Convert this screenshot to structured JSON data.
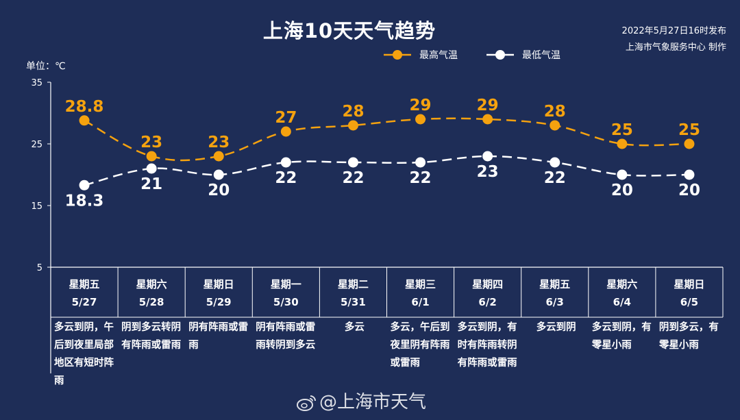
{
  "title": "上海10天天气趋势",
  "issue_time": "2022年5月27日16时发布",
  "issuer": "上海市气象服务中心 制作",
  "unit_label": "单位：℃",
  "watermark": "@上海市天气",
  "chart_data": {
    "type": "line",
    "categories": [
      "5/27",
      "5/28",
      "5/29",
      "5/30",
      "5/31",
      "6/1",
      "6/2",
      "6/3",
      "6/4",
      "6/5"
    ],
    "weekdays": [
      "星期五",
      "星期六",
      "星期日",
      "星期一",
      "星期二",
      "星期三",
      "星期四",
      "星期五",
      "星期六",
      "星期日"
    ],
    "descriptions": [
      "多云到阴，午后到夜里局部地区有短时阵雨",
      "阴到多云转阴有阵雨或雷雨",
      "阴有阵雨或雷雨",
      "阴有阵雨或雷雨转阴到多云",
      "多云",
      "多云，午后到夜里阴有阵雨或雷雨",
      "多云到阴，有时有阵雨转阴有阵雨或雷雨",
      "多云到阴",
      "多云到阴，有零星小雨",
      "阴到多云，有零星小雨"
    ],
    "series": [
      {
        "name": "最高气温",
        "color": "#f5a20f",
        "labels": [
          "28.8",
          "23",
          "23",
          "27",
          "28",
          "29",
          "29",
          "28",
          "25",
          "25"
        ],
        "values": [
          28.8,
          23,
          23,
          27,
          28,
          29,
          29,
          28,
          25,
          25
        ]
      },
      {
        "name": "最低气温",
        "color": "#ffffff",
        "labels": [
          "18.3",
          "21",
          "20",
          "22",
          "22",
          "22",
          "23",
          "22",
          "20",
          "20"
        ],
        "values": [
          18.3,
          21,
          20,
          22,
          22,
          22,
          23,
          22,
          20,
          20
        ]
      }
    ],
    "ylim": [
      5,
      35
    ],
    "yticks": [
      5,
      15,
      25,
      35
    ],
    "ylabel": "单位：℃",
    "grid": false,
    "legend_position": "top-center"
  }
}
